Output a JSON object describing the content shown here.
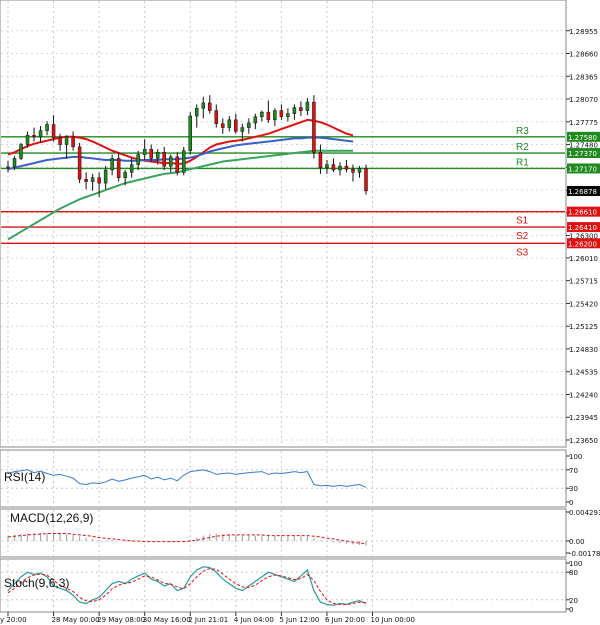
{
  "chart_data": {
    "type": "candlestick",
    "price_axis": {
      "ticks": [
        "1.28955",
        "1.28660",
        "1.28365",
        "1.28070",
        "1.27775",
        "1.27480",
        "1.27185",
        "1.26890",
        "1.26595",
        "1.26300",
        "1.26010",
        "1.25715",
        "1.25420",
        "1.25125",
        "1.24830",
        "1.24535",
        "1.24240",
        "1.23945",
        "1.23650"
      ],
      "range": [
        1.2365,
        1.2925
      ]
    },
    "current_price": "1.26878",
    "levels": [
      {
        "name": "R3",
        "value": 1.2758,
        "label": "1.27580",
        "color": "#1f8a1f",
        "box_bg": "#1f8a1f",
        "box_fg": "#ffffff"
      },
      {
        "name": "R2",
        "value": 1.2737,
        "label": "1.27370",
        "color": "#1f8a1f",
        "box_bg": "#1f8a1f",
        "box_fg": "#ffffff"
      },
      {
        "name": "R1",
        "value": 1.2717,
        "label": "1.27170",
        "color": "#1f8a1f",
        "box_bg": "#1f8a1f",
        "box_fg": "#ffffff"
      },
      {
        "name": "S1",
        "value": 1.2661,
        "label": "1.26610",
        "color": "#e01010",
        "box_bg": "#e01010",
        "box_fg": "#ffffff"
      },
      {
        "name": "S2",
        "value": 1.2641,
        "label": "1.26410",
        "color": "#e01010",
        "box_bg": "#e01010",
        "box_fg": "#ffffff"
      },
      {
        "name": "S3",
        "value": 1.262,
        "label": "1.26200",
        "color": "#e01010",
        "box_bg": "#e01010",
        "box_fg": "#ffffff"
      }
    ],
    "x_axis": {
      "ticks": [
        "y 20:00",
        "28 May 00:00",
        "29 May 08:00",
        "30 May 16:00",
        "2 Jun 21:01",
        "4 Jun 04:00",
        "5 Jun 12:00",
        "6 Jun 20:00",
        "10 Jun 00:00"
      ],
      "tick_positions": [
        0,
        7,
        14,
        21,
        28,
        35,
        42,
        49,
        56
      ]
    },
    "candles": [
      [
        1.2718,
        1.2727,
        1.2712,
        1.2719
      ],
      [
        1.2719,
        1.2733,
        1.2715,
        1.273
      ],
      [
        1.273,
        1.275,
        1.2728,
        1.2748
      ],
      [
        1.2748,
        1.2765,
        1.2744,
        1.276
      ],
      [
        1.276,
        1.277,
        1.2752,
        1.2758
      ],
      [
        1.2758,
        1.2772,
        1.275,
        1.2766
      ],
      [
        1.2766,
        1.2778,
        1.276,
        1.2774
      ],
      [
        1.2774,
        1.2786,
        1.2752,
        1.2757
      ],
      [
        1.2757,
        1.2762,
        1.274,
        1.2748
      ],
      [
        1.2748,
        1.276,
        1.273,
        1.2758
      ],
      [
        1.2758,
        1.2765,
        1.274,
        1.2745
      ],
      [
        1.2745,
        1.275,
        1.2698,
        1.2703
      ],
      [
        1.2703,
        1.2712,
        1.269,
        1.27
      ],
      [
        1.27,
        1.271,
        1.2688,
        1.2705
      ],
      [
        1.2705,
        1.2712,
        1.268,
        1.2698
      ],
      [
        1.2698,
        1.272,
        1.269,
        1.2715
      ],
      [
        1.2715,
        1.2735,
        1.2708,
        1.273
      ],
      [
        1.273,
        1.2738,
        1.27,
        1.2705
      ],
      [
        1.2705,
        1.2715,
        1.2695,
        1.2712
      ],
      [
        1.2712,
        1.273,
        1.2705,
        1.2722
      ],
      [
        1.2722,
        1.274,
        1.2715,
        1.2735
      ],
      [
        1.2735,
        1.2755,
        1.2728,
        1.2742
      ],
      [
        1.2742,
        1.2748,
        1.2725,
        1.273
      ],
      [
        1.273,
        1.2742,
        1.2722,
        1.2738
      ],
      [
        1.2738,
        1.2745,
        1.2715,
        1.272
      ],
      [
        1.272,
        1.2735,
        1.2712,
        1.2732
      ],
      [
        1.2732,
        1.2738,
        1.2708,
        1.2712
      ],
      [
        1.2712,
        1.2745,
        1.2708,
        1.274
      ],
      [
        1.274,
        1.279,
        1.2735,
        1.2785
      ],
      [
        1.2785,
        1.28,
        1.277,
        1.2795
      ],
      [
        1.2795,
        1.281,
        1.2782,
        1.2802
      ],
      [
        1.2802,
        1.2812,
        1.2788,
        1.2792
      ],
      [
        1.2792,
        1.28,
        1.277,
        1.2775
      ],
      [
        1.2775,
        1.2782,
        1.2762,
        1.277
      ],
      [
        1.277,
        1.2785,
        1.2765,
        1.278
      ],
      [
        1.278,
        1.2788,
        1.2762,
        1.2765
      ],
      [
        1.2765,
        1.2775,
        1.2752,
        1.277
      ],
      [
        1.277,
        1.2782,
        1.2762,
        1.2776
      ],
      [
        1.2776,
        1.2788,
        1.2768,
        1.2784
      ],
      [
        1.2784,
        1.2792,
        1.2778,
        1.279
      ],
      [
        1.279,
        1.2805,
        1.2776,
        1.278
      ],
      [
        1.278,
        1.2795,
        1.2772,
        1.2792
      ],
      [
        1.2792,
        1.28,
        1.278,
        1.2784
      ],
      [
        1.2784,
        1.2795,
        1.2778,
        1.2788
      ],
      [
        1.2788,
        1.28,
        1.278,
        1.2796
      ],
      [
        1.2796,
        1.2804,
        1.2785,
        1.2792
      ],
      [
        1.2792,
        1.2808,
        1.2786,
        1.2803
      ],
      [
        1.2803,
        1.2812,
        1.273,
        1.2738
      ],
      [
        1.2738,
        1.2748,
        1.271,
        1.2718
      ],
      [
        1.2718,
        1.2728,
        1.271,
        1.2722
      ],
      [
        1.2722,
        1.273,
        1.2712,
        1.2715
      ],
      [
        1.2715,
        1.2725,
        1.2708,
        1.272
      ],
      [
        1.272,
        1.2728,
        1.2712,
        1.2716
      ],
      [
        1.2716,
        1.2722,
        1.27,
        1.2712
      ],
      [
        1.2712,
        1.272,
        1.2705,
        1.2717
      ],
      [
        1.2717,
        1.2722,
        1.2683,
        1.2688
      ]
    ],
    "moving_averages": [
      {
        "name": "MA fast",
        "color": "#e01010",
        "values": [
          1.2735,
          1.2738,
          1.2742,
          1.2746,
          1.2749,
          1.2751,
          1.2753,
          1.2755,
          1.2757,
          1.2758,
          1.2758,
          1.2757,
          1.2755,
          1.2752,
          1.2748,
          1.2744,
          1.274,
          1.2737,
          1.2734,
          1.2731,
          1.2729,
          1.2727,
          1.2726,
          1.2725,
          1.2724,
          1.2724,
          1.2723,
          1.2723,
          1.2727,
          1.2732,
          1.2738,
          1.2744,
          1.2748,
          1.275,
          1.2752,
          1.2753,
          1.2754,
          1.2756,
          1.2758,
          1.276,
          1.2762,
          1.2765,
          1.2768,
          1.2771,
          1.2774,
          1.2777,
          1.278,
          1.2779,
          1.2777,
          1.2774,
          1.277,
          1.2766,
          1.2762,
          1.276
        ]
      },
      {
        "name": "MA medium",
        "color": "#3a5fcc",
        "values": [
          1.2716,
          1.2718,
          1.272,
          1.2722,
          1.2724,
          1.2726,
          1.2728,
          1.2729,
          1.273,
          1.2731,
          1.2732,
          1.2732,
          1.2731,
          1.273,
          1.2729,
          1.2728,
          1.2728,
          1.2728,
          1.2727,
          1.2727,
          1.2727,
          1.2728,
          1.2728,
          1.2728,
          1.2729,
          1.2729,
          1.2729,
          1.273,
          1.2731,
          1.2733,
          1.2736,
          1.2739,
          1.2741,
          1.2743,
          1.2745,
          1.2747,
          1.2748,
          1.2749,
          1.275,
          1.2751,
          1.2752,
          1.2753,
          1.2754,
          1.2755,
          1.2756,
          1.2756,
          1.2757,
          1.2757,
          1.2757,
          1.2756,
          1.2755,
          1.2754,
          1.2753,
          1.2752
        ]
      },
      {
        "name": "MA slow",
        "color": "#3aa35e",
        "values": [
          1.2625,
          1.263,
          1.2635,
          1.264,
          1.2645,
          1.265,
          1.2655,
          1.266,
          1.2665,
          1.2669,
          1.2673,
          1.2677,
          1.268,
          1.2683,
          1.2686,
          1.2689,
          1.2692,
          1.2695,
          1.2698,
          1.27,
          1.2702,
          1.2704,
          1.2706,
          1.2708,
          1.271,
          1.2711,
          1.2712,
          1.2714,
          1.2716,
          1.2718,
          1.272,
          1.2722,
          1.2724,
          1.2726,
          1.2727,
          1.2728,
          1.2729,
          1.273,
          1.2731,
          1.2732,
          1.2733,
          1.2734,
          1.2735,
          1.2736,
          1.2737,
          1.2738,
          1.2739,
          1.274,
          1.274,
          1.274,
          1.274,
          1.274,
          1.274,
          1.274
        ]
      }
    ],
    "rsi": {
      "label": "RSI(14)",
      "ticks": [
        "100",
        "70",
        "30",
        "0"
      ],
      "range": [
        0,
        100
      ],
      "color": "#3a7bd5",
      "values": [
        62,
        66,
        68,
        70,
        64,
        67,
        62,
        58,
        60,
        56,
        52,
        40,
        38,
        42,
        40,
        44,
        50,
        45,
        48,
        52,
        55,
        58,
        50,
        54,
        48,
        52,
        46,
        58,
        66,
        68,
        70,
        66,
        60,
        62,
        63,
        60,
        62,
        64,
        65,
        66,
        60,
        63,
        62,
        64,
        66,
        64,
        66,
        38,
        35,
        36,
        34,
        36,
        34,
        36,
        38,
        32
      ]
    },
    "macd": {
      "label": "MACD(12,26,9)",
      "ticks": [
        "0.004293",
        "0.00",
        "-0.001782"
      ],
      "range": [
        -0.001782,
        0.004293
      ],
      "hist_color": "#aaaaaa",
      "signal_color": "#e01010",
      "histogram": [
        0.0008,
        0.0009,
        0.001,
        0.0011,
        0.0011,
        0.0012,
        0.0012,
        0.0012,
        0.0011,
        0.001,
        0.0009,
        0.0007,
        0.0005,
        0.0003,
        0.0002,
        0.0001,
        0.0001,
        0.0,
        -0.0001,
        -0.0001,
        -0.0001,
        0.0,
        0.0,
        -0.0001,
        -0.0001,
        -0.0001,
        -0.0002,
        -0.0001,
        0.0002,
        0.0005,
        0.0008,
        0.001,
        0.0011,
        0.001,
        0.001,
        0.0009,
        0.0008,
        0.0008,
        0.0008,
        0.0008,
        0.0008,
        0.0008,
        0.0007,
        0.0007,
        0.0007,
        0.0007,
        0.0007,
        0.0004,
        0.0001,
        -0.0001,
        -0.0002,
        -0.0003,
        -0.0004,
        -0.0005,
        -0.0006,
        -0.0007
      ],
      "signal": [
        0.0006,
        0.0007,
        0.0008,
        0.0009,
        0.001,
        0.001,
        0.0011,
        0.0011,
        0.0011,
        0.0011,
        0.001,
        0.0009,
        0.0008,
        0.0007,
        0.0005,
        0.0004,
        0.0003,
        0.0002,
        0.0001,
        0.0,
        0.0,
        -0.0001,
        -0.0001,
        -0.0001,
        -0.0001,
        -0.0001,
        -0.0001,
        -0.0001,
        0.0,
        0.0001,
        0.0003,
        0.0005,
        0.0007,
        0.0008,
        0.0009,
        0.0009,
        0.0009,
        0.0009,
        0.0009,
        0.0009,
        0.0008,
        0.0008,
        0.0008,
        0.0008,
        0.0008,
        0.0008,
        0.0008,
        0.0007,
        0.0006,
        0.0004,
        0.0003,
        0.0001,
        0.0,
        -0.0002,
        -0.0003,
        -0.0004
      ]
    },
    "stoch": {
      "label": "Stoch(9,6,3)",
      "ticks": [
        "100",
        "80",
        "20",
        "0"
      ],
      "range": [
        0,
        100
      ],
      "k_color": "#2a9a9a",
      "d_color": "#e01010",
      "k": [
        40,
        55,
        70,
        80,
        75,
        78,
        70,
        50,
        45,
        40,
        30,
        15,
        12,
        20,
        25,
        40,
        55,
        60,
        55,
        65,
        72,
        78,
        65,
        60,
        50,
        55,
        40,
        45,
        70,
        85,
        92,
        90,
        80,
        65,
        55,
        45,
        40,
        50,
        60,
        70,
        80,
        75,
        70,
        65,
        60,
        72,
        85,
        40,
        15,
        10,
        8,
        12,
        10,
        15,
        18,
        12
      ],
      "d": [
        35,
        45,
        58,
        68,
        74,
        76,
        74,
        62,
        52,
        45,
        38,
        25,
        18,
        16,
        20,
        30,
        44,
        52,
        56,
        58,
        65,
        72,
        70,
        63,
        56,
        54,
        48,
        44,
        55,
        70,
        82,
        88,
        86,
        76,
        65,
        55,
        48,
        47,
        52,
        62,
        70,
        74,
        72,
        68,
        64,
        66,
        75,
        62,
        38,
        20,
        12,
        10,
        10,
        12,
        15,
        14
      ]
    }
  }
}
